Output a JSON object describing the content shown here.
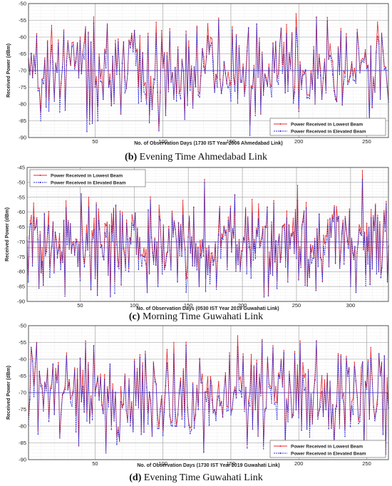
{
  "chart_data": [
    {
      "type": "line",
      "xlabel": "No. of Observation Days (1730 IST Year 2006 Ahmedabad Link)",
      "ylabel": "Received Power (dBm)",
      "xlim": [
        1,
        266
      ],
      "ylim": [
        -90,
        -50
      ],
      "xticks": [
        50,
        100,
        150,
        200,
        250
      ],
      "yticks": [
        -90,
        -85,
        -80,
        -75,
        -70,
        -65,
        -60,
        -55,
        -50
      ],
      "grid": true,
      "legend_position": "bottom-right",
      "series": [
        {
          "name": "Power Received in Lowest Beam",
          "color": "#e8282d",
          "style": "solid"
        },
        {
          "name": "Power Received in Elevated Beam",
          "color": "#2b2bd6",
          "style": "dashed"
        }
      ],
      "baselines": [
        -70
      ],
      "n_points": 266,
      "seed": 11,
      "peaks": [
        [
          18,
          -56.5
        ],
        [
          133,
          -56
        ],
        [
          198,
          -53
        ],
        [
          258,
          -55.5
        ]
      ],
      "troughs": [
        [
          97,
          -88
        ],
        [
          69,
          -83
        ],
        [
          172,
          -83
        ]
      ],
      "caption_letter": "(b)",
      "caption_text": " Evening Time Ahmedabad Link"
    },
    {
      "type": "line",
      "xlabel": "No. of Observation Days (0530 IST Year 2019 Guwahati Link)",
      "ylabel": "Received Power (dBm)",
      "xlim": [
        1,
        335
      ],
      "ylim": [
        -90,
        -45
      ],
      "xticks": [
        50,
        100,
        150,
        200,
        250,
        300
      ],
      "yticks": [
        -90,
        -85,
        -80,
        -75,
        -70,
        -65,
        -60,
        -55,
        -50,
        -45
      ],
      "grid": true,
      "legend_position": "top-left",
      "series": [
        {
          "name": "Power Received in Lowest Beam",
          "color": "#e8282d",
          "style": "solid"
        },
        {
          "name": "Power Received in Elevated Beam",
          "color": "#2b2bd6",
          "style": "dashed"
        }
      ],
      "baselines": [
        -70,
        -72
      ],
      "n_points": 335,
      "seed": 29,
      "peaks": [
        [
          311,
          -46
        ],
        [
          251,
          -51
        ],
        [
          145,
          -56
        ],
        [
          58,
          -55
        ]
      ],
      "troughs": [
        [
          66,
          -88
        ],
        [
          305,
          -87
        ],
        [
          112,
          -87
        ],
        [
          160,
          -85
        ]
      ],
      "caption_letter": "(c)",
      "caption_text": " Morning Time Guwahati Link"
    },
    {
      "type": "line",
      "xlabel": "No. of Observation Days (1730 IST Year 2019 Guwahati Link)",
      "ylabel": "Received Power (dBm)",
      "xlim": [
        1,
        266
      ],
      "ylim": [
        -90,
        -50
      ],
      "xticks": [
        50,
        100,
        150,
        200,
        250
      ],
      "yticks": [
        -90,
        -85,
        -80,
        -75,
        -70,
        -65,
        -60,
        -55,
        -50
      ],
      "grid": true,
      "legend_position": "bottom-right",
      "series": [
        {
          "name": "Power Received in Lowest Beam",
          "color": "#e8282d",
          "style": "solid"
        },
        {
          "name": "Power Received in Elevated Beam",
          "color": "#2b2bd6",
          "style": "dashed"
        }
      ],
      "baselines": [
        -70
      ],
      "n_points": 266,
      "seed": 47,
      "peaks": [
        [
          155,
          -53
        ],
        [
          58,
          -56
        ],
        [
          108,
          -55
        ],
        [
          253,
          -56.5
        ]
      ],
      "troughs": [
        [
          58,
          -88
        ],
        [
          92,
          -83
        ],
        [
          170,
          -83
        ]
      ],
      "caption_letter": "(d)",
      "caption_text": " Evening Time Guwahati Link"
    }
  ]
}
